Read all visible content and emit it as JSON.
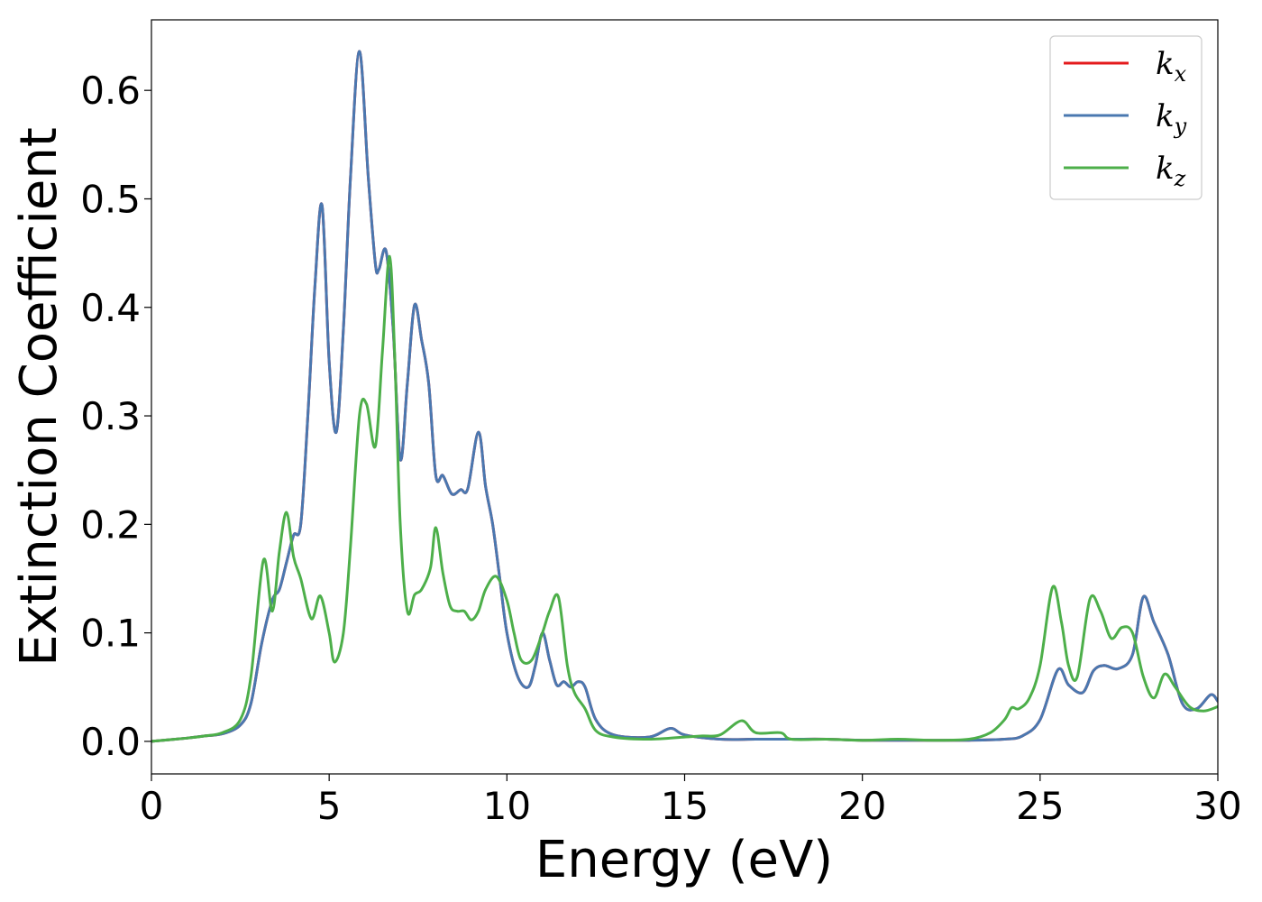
{
  "chart_data": {
    "type": "line",
    "title": "",
    "xlabel": "Energy (eV)",
    "ylabel": "Extinction Coefficient",
    "xlim": [
      0,
      30
    ],
    "ylim": [
      -0.03,
      0.665
    ],
    "xticks": [
      0,
      5,
      10,
      15,
      20,
      25,
      30
    ],
    "yticks": [
      0.0,
      0.1,
      0.2,
      0.3,
      0.4,
      0.5,
      0.6
    ],
    "xtick_labels": [
      "0",
      "5",
      "10",
      "15",
      "20",
      "25",
      "30"
    ],
    "ytick_labels": [
      "0.0",
      "0.1",
      "0.2",
      "0.3",
      "0.4",
      "0.5",
      "0.6"
    ],
    "grid": false,
    "legend_position": "top-right",
    "series": [
      {
        "name_base": "k",
        "name_sub": "x",
        "color": "#e41a1c",
        "x": [
          0,
          1,
          1.5,
          2,
          2.5,
          2.8,
          3.1,
          3.4,
          3.6,
          3.8,
          4.0,
          4.2,
          4.4,
          4.6,
          4.8,
          5.0,
          5.2,
          5.4,
          5.6,
          5.85,
          6.1,
          6.3,
          6.4,
          6.6,
          6.8,
          7.0,
          7.2,
          7.4,
          7.6,
          7.8,
          8.0,
          8.2,
          8.45,
          8.7,
          8.9,
          9.2,
          9.4,
          9.6,
          9.8,
          10.0,
          10.3,
          10.6,
          10.8,
          11.0,
          11.2,
          11.4,
          11.6,
          11.8,
          12.0,
          12.2,
          12.5,
          13.0,
          14.0,
          14.6,
          15.0,
          16.0,
          17.0,
          18.0,
          19.0,
          20.0,
          21.0,
          22.0,
          23.0,
          24.0,
          24.5,
          25.0,
          25.5,
          25.8,
          26.2,
          26.5,
          26.8,
          27.2,
          27.6,
          27.9,
          28.2,
          28.6,
          29.0,
          29.4,
          29.8,
          30.0
        ],
        "y": [
          0.0,
          0.003,
          0.005,
          0.007,
          0.015,
          0.035,
          0.09,
          0.13,
          0.14,
          0.165,
          0.19,
          0.2,
          0.3,
          0.42,
          0.494,
          0.35,
          0.285,
          0.38,
          0.52,
          0.636,
          0.52,
          0.44,
          0.435,
          0.452,
          0.38,
          0.26,
          0.33,
          0.402,
          0.37,
          0.33,
          0.245,
          0.245,
          0.228,
          0.232,
          0.233,
          0.285,
          0.235,
          0.2,
          0.15,
          0.1,
          0.06,
          0.05,
          0.07,
          0.1,
          0.075,
          0.052,
          0.055,
          0.05,
          0.055,
          0.05,
          0.02,
          0.006,
          0.004,
          0.012,
          0.006,
          0.002,
          0.002,
          0.002,
          0.002,
          0.001,
          0.001,
          0.001,
          0.001,
          0.002,
          0.005,
          0.02,
          0.066,
          0.052,
          0.045,
          0.065,
          0.07,
          0.067,
          0.08,
          0.133,
          0.11,
          0.08,
          0.035,
          0.03,
          0.043,
          0.037
        ]
      },
      {
        "name_base": "k",
        "name_sub": "y",
        "color": "#4a78b0",
        "x": [
          0,
          1,
          1.5,
          2,
          2.5,
          2.8,
          3.1,
          3.4,
          3.6,
          3.8,
          4.0,
          4.2,
          4.4,
          4.6,
          4.8,
          5.0,
          5.2,
          5.4,
          5.6,
          5.85,
          6.1,
          6.3,
          6.4,
          6.6,
          6.8,
          7.0,
          7.2,
          7.4,
          7.6,
          7.8,
          8.0,
          8.2,
          8.45,
          8.7,
          8.9,
          9.2,
          9.4,
          9.6,
          9.8,
          10.0,
          10.3,
          10.6,
          10.8,
          11.0,
          11.2,
          11.4,
          11.6,
          11.8,
          12.0,
          12.2,
          12.5,
          13.0,
          14.0,
          14.6,
          15.0,
          16.0,
          17.0,
          18.0,
          19.0,
          20.0,
          21.0,
          22.0,
          23.0,
          24.0,
          24.5,
          25.0,
          25.5,
          25.8,
          26.2,
          26.5,
          26.8,
          27.2,
          27.6,
          27.9,
          28.2,
          28.6,
          29.0,
          29.4,
          29.8,
          30.0
        ],
        "y": [
          0.0,
          0.003,
          0.005,
          0.007,
          0.015,
          0.035,
          0.09,
          0.13,
          0.14,
          0.165,
          0.19,
          0.2,
          0.3,
          0.42,
          0.494,
          0.35,
          0.285,
          0.38,
          0.52,
          0.636,
          0.52,
          0.44,
          0.435,
          0.452,
          0.38,
          0.26,
          0.33,
          0.402,
          0.37,
          0.33,
          0.245,
          0.245,
          0.228,
          0.232,
          0.233,
          0.285,
          0.235,
          0.2,
          0.15,
          0.1,
          0.06,
          0.05,
          0.07,
          0.1,
          0.075,
          0.052,
          0.055,
          0.05,
          0.055,
          0.05,
          0.02,
          0.006,
          0.004,
          0.012,
          0.006,
          0.002,
          0.002,
          0.002,
          0.002,
          0.001,
          0.001,
          0.001,
          0.001,
          0.002,
          0.005,
          0.02,
          0.066,
          0.052,
          0.045,
          0.065,
          0.07,
          0.067,
          0.08,
          0.133,
          0.11,
          0.08,
          0.035,
          0.03,
          0.043,
          0.037
        ]
      },
      {
        "name_base": "k",
        "name_sub": "z",
        "color": "#4daf4a",
        "x": [
          0,
          1,
          1.5,
          2,
          2.5,
          2.8,
          3.15,
          3.4,
          3.6,
          3.8,
          4.0,
          4.2,
          4.5,
          4.75,
          5.0,
          5.15,
          5.4,
          5.6,
          5.85,
          6.05,
          6.3,
          6.5,
          6.7,
          6.85,
          7.0,
          7.2,
          7.4,
          7.6,
          7.85,
          8.0,
          8.2,
          8.4,
          8.6,
          8.8,
          9.0,
          9.2,
          9.4,
          9.7,
          10.0,
          10.2,
          10.4,
          10.7,
          11.0,
          11.2,
          11.45,
          11.7,
          11.9,
          12.2,
          12.5,
          13.0,
          14.0,
          15.0,
          15.5,
          16.0,
          16.6,
          17.0,
          17.7,
          18.0,
          19.0,
          20.0,
          21.0,
          22.0,
          23.0,
          23.6,
          24.0,
          24.2,
          24.4,
          24.7,
          25.0,
          25.35,
          25.6,
          25.8,
          26.05,
          26.4,
          26.7,
          27.0,
          27.3,
          27.6,
          27.9,
          28.2,
          28.5,
          28.8,
          29.2,
          29.6,
          30.0
        ],
        "y": [
          0.0,
          0.003,
          0.005,
          0.008,
          0.02,
          0.06,
          0.167,
          0.12,
          0.175,
          0.211,
          0.17,
          0.15,
          0.113,
          0.134,
          0.1,
          0.073,
          0.1,
          0.18,
          0.3,
          0.311,
          0.272,
          0.36,
          0.447,
          0.35,
          0.2,
          0.12,
          0.135,
          0.14,
          0.16,
          0.197,
          0.155,
          0.125,
          0.12,
          0.12,
          0.112,
          0.12,
          0.14,
          0.152,
          0.13,
          0.1,
          0.075,
          0.075,
          0.1,
          0.12,
          0.133,
          0.07,
          0.045,
          0.03,
          0.01,
          0.004,
          0.002,
          0.004,
          0.005,
          0.006,
          0.019,
          0.008,
          0.008,
          0.002,
          0.002,
          0.001,
          0.002,
          0.001,
          0.002,
          0.008,
          0.02,
          0.031,
          0.03,
          0.04,
          0.07,
          0.142,
          0.11,
          0.07,
          0.06,
          0.131,
          0.12,
          0.095,
          0.105,
          0.1,
          0.06,
          0.04,
          0.062,
          0.05,
          0.032,
          0.028,
          0.032
        ]
      }
    ]
  }
}
